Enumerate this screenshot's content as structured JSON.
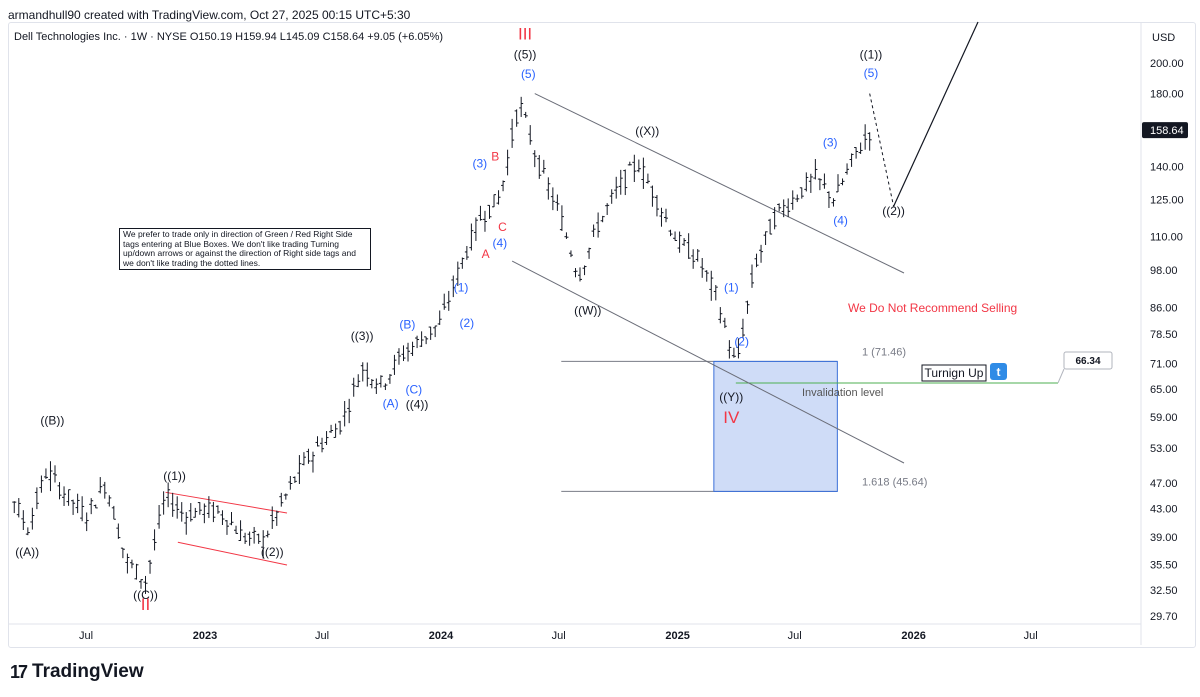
{
  "header": {
    "attribution": "armandhull90 created with TradingView.com, Oct 27, 2025 00:15 UTC+5:30",
    "symbol": "Dell Technologies Inc. · 1W · NYSE",
    "ohlc": "O150.19  H159.94  L145.09  C158.64  +9.05 (+6.05%)"
  },
  "footer": {
    "logo_text": "TradingView",
    "logo_mark": "17"
  },
  "colors": {
    "candle": "#131722",
    "wave_blue": "#2962ff",
    "wave_red": "#f23645",
    "box_fill": "#a8c0f0",
    "box_stroke": "#3a6fd8",
    "invalidation_line": "#4caf50",
    "arrow_blue": "#2f8be6"
  },
  "notes": {
    "disclaimer": "We prefer to trade only in direction of Green / Red Right Side tags entering at Blue Boxes. We don't like trading Turning up/down arrows or against the direction of Right side tags and we don't like trading the dotted lines.",
    "not_recommend": "We Do Not Recommend Selling",
    "turning_up": "Turnign Up",
    "invalidation": "Invalidation level",
    "fib_1": "1 (71.46)",
    "fib_1618": "1.618 (45.64)",
    "price_tag": "66.34"
  },
  "chart_data": {
    "type": "candlestick",
    "symbol": "DELL",
    "interval": "1W",
    "y_axis": {
      "unit": "USD",
      "scale": "log",
      "ticks": [
        29.7,
        32.5,
        35.5,
        39.0,
        43.0,
        47.0,
        53.0,
        59.0,
        65.0,
        71.0,
        78.5,
        86.0,
        98.0,
        110.0,
        125.0,
        140.0,
        158.64,
        180.0,
        200.0
      ],
      "tick_labels": [
        "29.70",
        "32.50",
        "35.50",
        "39.00",
        "43.00",
        "47.00",
        "53.00",
        "59.00",
        "65.00",
        "71.00",
        "78.50",
        "86.00",
        "98.00",
        "110.00",
        "125.00",
        "140.00",
        "",
        "180.00",
        "200.00"
      ],
      "last_price": 158.64,
      "last_price_label": "158.64"
    },
    "x_axis": {
      "tick_labels": [
        "Jul",
        "2023",
        "Jul",
        "2024",
        "Jul",
        "2025",
        "Jul",
        "2026",
        "Jul"
      ],
      "tick_dates": [
        "2022-07-01",
        "2023-01-01",
        "2023-07-01",
        "2024-01-01",
        "2024-07-01",
        "2025-01-01",
        "2025-07-01",
        "2026-01-01",
        "2026-07-01"
      ],
      "bold": [
        false,
        true,
        false,
        true,
        false,
        true,
        false,
        true,
        false
      ]
    },
    "price_path": [
      [
        "2022-01-01",
        50
      ],
      [
        "2022-02-01",
        55
      ],
      [
        "2022-03-01",
        47
      ],
      [
        "2022-04-01",
        40
      ],
      [
        "2022-05-01",
        49
      ],
      [
        "2022-06-01",
        45
      ],
      [
        "2022-07-01",
        42
      ],
      [
        "2022-08-01",
        47
      ],
      [
        "2022-09-01",
        36
      ],
      [
        "2022-10-01",
        33.5
      ],
      [
        "2022-11-01",
        45
      ],
      [
        "2022-12-01",
        42
      ],
      [
        "2023-01-01",
        43
      ],
      [
        "2023-02-01",
        42
      ],
      [
        "2023-03-01",
        39
      ],
      [
        "2023-04-01",
        38.5
      ],
      [
        "2023-05-01",
        44
      ],
      [
        "2023-06-01",
        50
      ],
      [
        "2023-07-01",
        54
      ],
      [
        "2023-08-01",
        58
      ],
      [
        "2023-09-01",
        70
      ],
      [
        "2023-10-01",
        66
      ],
      [
        "2023-11-01",
        73
      ],
      [
        "2023-12-01",
        77
      ],
      [
        "2024-01-01",
        82
      ],
      [
        "2024-02-01",
        100
      ],
      [
        "2024-03-01",
        117
      ],
      [
        "2024-04-01",
        126
      ],
      [
        "2024-05-01",
        175
      ],
      [
        "2024-06-01",
        140
      ],
      [
        "2024-07-01",
        120
      ],
      [
        "2024-08-01",
        96
      ],
      [
        "2024-09-01",
        115
      ],
      [
        "2024-10-01",
        130
      ],
      [
        "2024-11-01",
        142
      ],
      [
        "2024-12-01",
        124
      ],
      [
        "2025-01-01",
        108
      ],
      [
        "2025-02-01",
        102
      ],
      [
        "2025-03-01",
        90
      ],
      [
        "2025-04-01",
        70
      ],
      [
        "2025-05-01",
        100
      ],
      [
        "2025-06-01",
        118
      ],
      [
        "2025-07-01",
        126
      ],
      [
        "2025-08-01",
        135
      ],
      [
        "2025-09-01",
        125
      ],
      [
        "2025-10-01",
        145
      ],
      [
        "2025-10-27",
        158.64
      ]
    ],
    "wave_labels": [
      {
        "text": "((A))",
        "date": "2022-04-01",
        "price": 36.5,
        "color": "black"
      },
      {
        "text": "((B))",
        "date": "2022-05-10",
        "price": 57.5,
        "color": "black"
      },
      {
        "text": "((C))",
        "date": "2022-10-01",
        "price": 31.5,
        "color": "black"
      },
      {
        "text": "II",
        "date": "2022-10-01",
        "price": 30.3,
        "color": "red"
      },
      {
        "text": "((1))",
        "date": "2022-11-15",
        "price": 47.5,
        "color": "black"
      },
      {
        "text": "((2))",
        "date": "2023-04-15",
        "price": 36.5,
        "color": "black"
      },
      {
        "text": "((3))",
        "date": "2023-09-01",
        "price": 77.0,
        "color": "black"
      },
      {
        "text": "(A)",
        "date": "2023-10-15",
        "price": 61.0,
        "color": "blue"
      },
      {
        "text": "(B)",
        "date": "2023-11-10",
        "price": 80.0,
        "color": "blue"
      },
      {
        "text": "(C)",
        "date": "2023-11-20",
        "price": 64.0,
        "color": "blue"
      },
      {
        "text": "((4))",
        "date": "2023-11-25",
        "price": 60.8,
        "color": "black"
      },
      {
        "text": "(1)",
        "date": "2024-02-01",
        "price": 91.0,
        "color": "blue"
      },
      {
        "text": "(2)",
        "date": "2024-02-10",
        "price": 80.5,
        "color": "blue"
      },
      {
        "text": "(3)",
        "date": "2024-03-01",
        "price": 139.5,
        "color": "blue"
      },
      {
        "text": "A",
        "date": "2024-03-10",
        "price": 102.0,
        "color": "red"
      },
      {
        "text": "B",
        "date": "2024-03-25",
        "price": 143.0,
        "color": "red"
      },
      {
        "text": "C",
        "date": "2024-04-05",
        "price": 112.0,
        "color": "red"
      },
      {
        "text": "(4)",
        "date": "2024-04-01",
        "price": 106.0,
        "color": "blue"
      },
      {
        "text": "III",
        "date": "2024-05-10",
        "price": 217.0,
        "color": "red"
      },
      {
        "text": "((5))",
        "date": "2024-05-10",
        "price": 203.0,
        "color": "black"
      },
      {
        "text": "(5)",
        "date": "2024-05-15",
        "price": 190.0,
        "color": "blue"
      },
      {
        "text": "((W))",
        "date": "2024-08-15",
        "price": 84.0,
        "color": "black"
      },
      {
        "text": "((X))",
        "date": "2024-11-15",
        "price": 156.0,
        "color": "black"
      },
      {
        "text": "(1)",
        "date": "2025-03-25",
        "price": 91.0,
        "color": "blue"
      },
      {
        "text": "(2)",
        "date": "2025-04-10",
        "price": 75.5,
        "color": "blue"
      },
      {
        "text": "((Y))",
        "date": "2025-03-25",
        "price": 62.3,
        "color": "black"
      },
      {
        "text": "IV",
        "date": "2025-03-25",
        "price": 57.8,
        "color": "red"
      },
      {
        "text": "(3)",
        "date": "2025-08-25",
        "price": 150.0,
        "color": "blue"
      },
      {
        "text": "(4)",
        "date": "2025-09-10",
        "price": 114.5,
        "color": "blue"
      },
      {
        "text": "((1))",
        "date": "2025-10-27",
        "price": 203.0,
        "color": "black"
      },
      {
        "text": "(5)",
        "date": "2025-10-27",
        "price": 190.5,
        "color": "blue"
      },
      {
        "text": "((2))",
        "date": "2025-12-01",
        "price": 118.5,
        "color": "black"
      }
    ],
    "fib_levels": [
      {
        "ratio": 1,
        "price": 71.46,
        "label": "1 (71.46)"
      },
      {
        "ratio": 1.618,
        "price": 45.64,
        "label": "1.618 (45.64)"
      }
    ],
    "invalidation_level": 66.34,
    "projection": [
      [
        "2025-10-25",
        180
      ],
      [
        "2025-12-01",
        122
      ],
      [
        "2026-03-15",
        240
      ]
    ]
  }
}
